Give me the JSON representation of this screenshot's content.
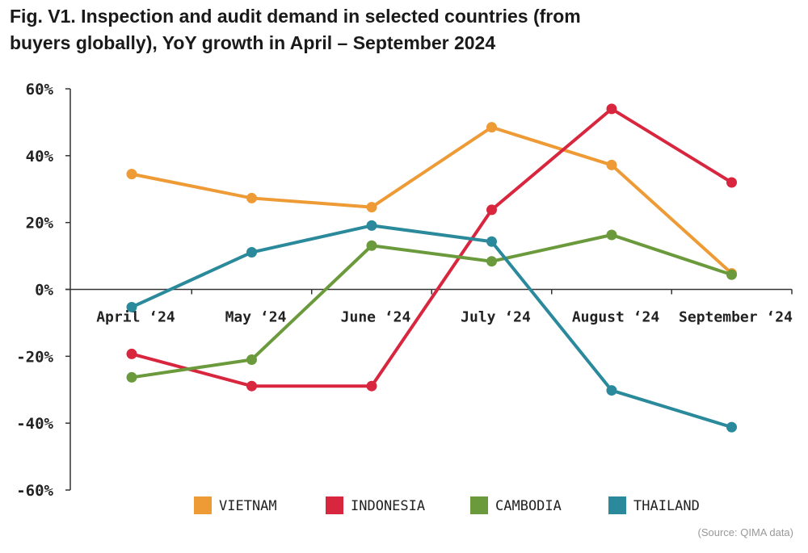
{
  "title_lines": [
    "Fig. V1. Inspection and audit demand in selected countries (from",
    "buyers globally), YoY growth in April – September 2024"
  ],
  "source": "(Source: QIMA data)",
  "chart_data": {
    "type": "line",
    "categories": [
      "April ‘24",
      "May ‘24",
      "June ‘24",
      "July ‘24",
      "August ‘24",
      "September ‘24"
    ],
    "yticks": [
      60,
      40,
      20,
      0,
      -20,
      -40,
      -60
    ],
    "ytick_labels": [
      "60%",
      "40%",
      "20%",
      "0%",
      "-20%",
      "-40%",
      "-60%"
    ],
    "ylim": [
      -60,
      60
    ],
    "grid": false,
    "legend_position": "bottom",
    "series": [
      {
        "name": "VIETNAM",
        "color": "#EE9A35",
        "values": [
          34.5,
          27.3,
          24.6,
          48.5,
          37.2,
          4.8
        ]
      },
      {
        "name": "INDONESIA",
        "color": "#D9263F",
        "values": [
          -19.3,
          -28.9,
          -28.9,
          23.8,
          54.0,
          32.0
        ]
      },
      {
        "name": "CAMBODIA",
        "color": "#6A9A3B",
        "values": [
          -26.3,
          -21.0,
          13.1,
          8.4,
          16.3,
          4.4
        ]
      },
      {
        "name": "THAILAND",
        "color": "#2A8A9B",
        "values": [
          -5.3,
          11.1,
          19.1,
          14.3,
          -30.2,
          -41.2
        ]
      }
    ]
  }
}
